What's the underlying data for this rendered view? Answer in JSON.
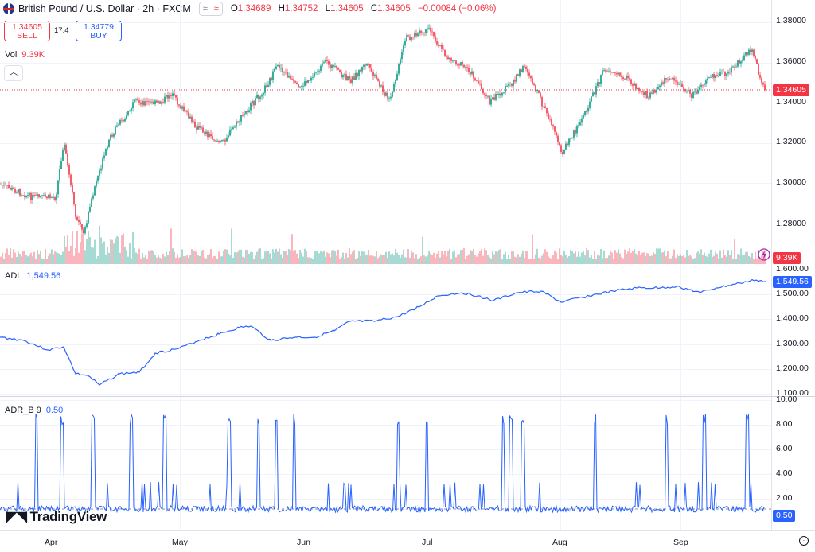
{
  "header": {
    "symbol": "British Pound / U.S. Dollar · 2h · FXCM",
    "pill_left": "≈",
    "pill_right": "≈",
    "ohlc": [
      {
        "k": "O",
        "v": "1.34689"
      },
      {
        "k": "H",
        "v": "1.34752"
      },
      {
        "k": "L",
        "v": "1.34605"
      },
      {
        "k": "C",
        "v": "1.34605"
      },
      {
        "k": "",
        "v": "−0.00084 (−0.06%)"
      }
    ]
  },
  "trade": {
    "sell_price": "1.34605",
    "sell_label": "SELL",
    "spread": "17.4",
    "buy_price": "1.34779",
    "buy_label": "BUY"
  },
  "volume": {
    "label": "Vol",
    "value": "9.39K"
  },
  "collapse_icon": "chevron-up-icon",
  "price_scale": [
    "1.38000",
    "1.36000",
    "1.34000",
    "1.32000",
    "1.30000",
    "1.28000"
  ],
  "price_tag": "1.34605",
  "volume_tag": "9.39K",
  "adl": {
    "label": "ADL",
    "value": "1,549.56",
    "scale": [
      "1,600.00",
      "1,500.00",
      "1,400.00",
      "1,300.00",
      "1,200.00",
      "1,100.00"
    ],
    "tag": "1,549.56"
  },
  "adr": {
    "label": "ADR_B 9",
    "value": "0.50",
    "scale": [
      "10.00",
      "8.00",
      "6.00",
      "4.00",
      "2.00"
    ],
    "tag": "0.50"
  },
  "x_axis": [
    "Apr",
    "May",
    "Jun",
    "Jul",
    "Aug",
    "Sep"
  ],
  "logo": "TradingView",
  "colors": {
    "up": "#089981",
    "down": "#f23645",
    "line": "#2962ff"
  }
}
